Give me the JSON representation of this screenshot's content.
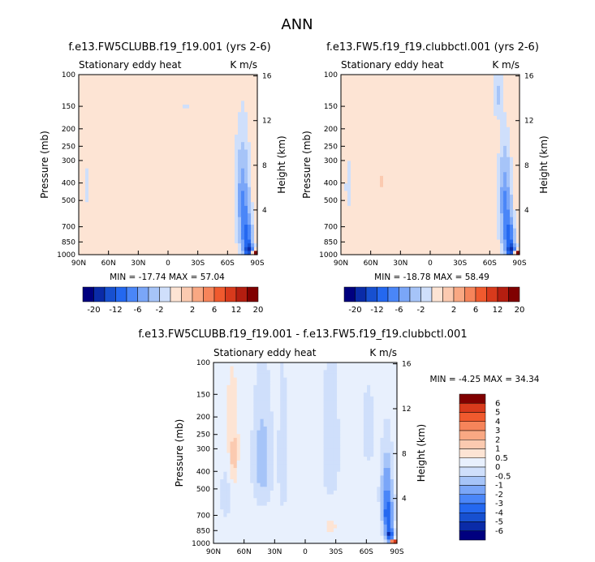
{
  "chart_data": {
    "type": "heatmap",
    "title": "ANN",
    "panels": [
      {
        "id": "p1",
        "title": "f.e13.FW5CLUBB.f19_f19.001 (yrs 2-6)",
        "left_label": "Stationary eddy heat",
        "right_label": "K m/s",
        "xlabel": "",
        "ylabel": "Pressure (mb)",
        "y2label": "Height (km)",
        "x_ticks": [
          "90N",
          "60N",
          "30N",
          "0",
          "30S",
          "60S",
          "90S"
        ],
        "x_values": [
          90,
          60,
          30,
          0,
          -30,
          -60,
          -90
        ],
        "y_ticks": [
          100,
          150,
          200,
          250,
          300,
          400,
          500,
          700,
          850,
          1000
        ],
        "y2_ticks": [
          4,
          8,
          12,
          16
        ],
        "ylim": [
          1000,
          100
        ],
        "stats": "MIN = -17.74   MAX = 57.04",
        "min": -17.74,
        "max": 57.04,
        "background_value": -0.7,
        "features": [
          {
            "lat": 23,
            "p": 140,
            "wlat": 4,
            "wp": 14,
            "v": 1.5
          },
          {
            "lat": -18,
            "p": 150,
            "wlat": 3,
            "wp": 6,
            "v": -1.2
          },
          {
            "lat": 46,
            "p": 400,
            "wlat": 5,
            "wp": 150,
            "v": 1.4
          },
          {
            "lat": 56,
            "p": 400,
            "wlat": 10,
            "wp": 330,
            "v": 0.6
          },
          {
            "lat": 82,
            "p": 420,
            "wlat": 3,
            "wp": 90,
            "v": -0.8
          },
          {
            "lat": -74,
            "p": 380,
            "wlat": 6,
            "wp": 140,
            "v": -2
          },
          {
            "lat": -76,
            "p": 620,
            "wlat": 5,
            "wp": 260,
            "v": -6
          },
          {
            "lat": -80,
            "p": 820,
            "wlat": 4,
            "wp": 180,
            "v": -9
          },
          {
            "lat": -82,
            "p": 950,
            "wlat": 4,
            "wp": 60,
            "v": -14
          },
          {
            "lat": -88,
            "p": 985,
            "wlat": 2.5,
            "wp": 35,
            "v": 30
          }
        ]
      },
      {
        "id": "p2",
        "title": "f.e13.FW5.f19_f19.clubbctl.001 (yrs 2-6)",
        "left_label": "Stationary eddy heat",
        "right_label": "K m/s",
        "xlabel": "",
        "ylabel": "Pressure (mb)",
        "y2label": "Height (km)",
        "x_ticks": [
          "90N",
          "60N",
          "30N",
          "0",
          "30S",
          "60S",
          "90S"
        ],
        "x_values": [
          90,
          60,
          30,
          0,
          -30,
          -60,
          -90
        ],
        "y_ticks": [
          100,
          150,
          200,
          250,
          300,
          400,
          500,
          700,
          850,
          1000
        ],
        "y2_ticks": [
          4,
          8,
          12,
          16
        ],
        "ylim": [
          1000,
          100
        ],
        "stats": "MIN = -18.78   MAX = 58.49",
        "min": -18.78,
        "max": 58.49,
        "background_value": -0.6,
        "features": [
          {
            "lat": 48,
            "p": 400,
            "wlat": 6,
            "wp": 400,
            "v": 1.5
          },
          {
            "lat": 28,
            "p": 360,
            "wlat": 16,
            "wp": 700,
            "v": 0.9
          },
          {
            "lat": 82,
            "p": 420,
            "wlat": 3,
            "wp": 120,
            "v": -1.2
          },
          {
            "lat": -68,
            "p": 130,
            "wlat": 4,
            "wp": 35,
            "v": -1.8
          },
          {
            "lat": -74,
            "p": 400,
            "wlat": 5,
            "wp": 140,
            "v": -2
          },
          {
            "lat": -76,
            "p": 620,
            "wlat": 5,
            "wp": 260,
            "v": -6
          },
          {
            "lat": -80,
            "p": 820,
            "wlat": 4,
            "wp": 180,
            "v": -9
          },
          {
            "lat": -82,
            "p": 950,
            "wlat": 4,
            "wp": 60,
            "v": -14
          },
          {
            "lat": -88,
            "p": 985,
            "wlat": 2.5,
            "wp": 35,
            "v": 30
          }
        ]
      },
      {
        "id": "p3",
        "title": "f.e13.FW5CLUBB.f19_f19.001 - f.e13.FW5.f19_f19.clubbctl.001",
        "left_label": "Stationary eddy heat",
        "right_label": "K m/s",
        "xlabel": "",
        "ylabel": "Pressure (mb)",
        "y2label": "Height (km)",
        "x_ticks": [
          "90N",
          "60N",
          "30N",
          "0",
          "30S",
          "60S",
          "90S"
        ],
        "x_values": [
          90,
          60,
          30,
          0,
          -30,
          -60,
          -90
        ],
        "y_ticks": [
          100,
          150,
          200,
          250,
          300,
          400,
          500,
          700,
          850,
          1000
        ],
        "y2_ticks": [
          4,
          8,
          12,
          16
        ],
        "ylim": [
          1000,
          100
        ],
        "stats": "MIN =  -4.25   MAX =  34.34",
        "min": -4.25,
        "max": 34.34,
        "background_value": 0.15,
        "features": [
          {
            "lat": 70,
            "p": 350,
            "wlat": 4,
            "wp": 120,
            "v": 0.9
          },
          {
            "lat": 72,
            "p": 200,
            "wlat": 8,
            "wp": 150,
            "v": 0.5
          },
          {
            "lat": 42,
            "p": 350,
            "wlat": 8,
            "wp": 200,
            "v": -1.1
          },
          {
            "lat": 22,
            "p": 350,
            "wlat": 4,
            "wp": 250,
            "v": -0.5
          },
          {
            "lat": 78,
            "p": 550,
            "wlat": 4,
            "wp": 150,
            "v": -0.6
          },
          {
            "lat": -25,
            "p": 800,
            "wlat": 6,
            "wp": 80,
            "v": 0.7
          },
          {
            "lat": -25,
            "p": 300,
            "wlat": 10,
            "wp": 300,
            "v": -0.3
          },
          {
            "lat": -62,
            "p": 240,
            "wlat": 5,
            "wp": 90,
            "v": -0.6
          },
          {
            "lat": -80,
            "p": 520,
            "wlat": 5,
            "wp": 200,
            "v": -2
          },
          {
            "lat": -81,
            "p": 720,
            "wlat": 4,
            "wp": 150,
            "v": -3.5
          },
          {
            "lat": -83,
            "p": 900,
            "wlat": 3,
            "wp": 70,
            "v": -5
          },
          {
            "lat": -87,
            "p": 985,
            "wlat": 2.5,
            "wp": 30,
            "v": 8
          }
        ]
      }
    ],
    "colorbar_fields": {
      "levels": [
        "-20",
        "-12",
        "-6",
        "-2",
        "2",
        "6",
        "12",
        "20"
      ],
      "level_values": [
        -20,
        -16,
        -12,
        -9,
        -6,
        -4,
        -2,
        -1,
        1,
        2,
        4,
        6,
        9,
        12,
        16,
        20
      ],
      "colors": [
        "#00007f",
        "#0a2ba8",
        "#1750d0",
        "#2468f0",
        "#4a86f8",
        "#7aa6f8",
        "#a6c4f8",
        "#cfdffb",
        "#fde4d4",
        "#fbcab0",
        "#f9a883",
        "#f6845a",
        "#f05a2e",
        "#d83a1c",
        "#b41e10",
        "#800000"
      ]
    },
    "colorbar_diff": {
      "levels": [
        "6",
        "5",
        "4",
        "3",
        "2",
        "1",
        "0.5",
        "0",
        "-0.5",
        "-1",
        "-2",
        "-3",
        "-4",
        "-5",
        "-6"
      ],
      "level_values": [
        -6,
        -5,
        -4,
        -3,
        -2,
        -1,
        -0.5,
        0,
        0.5,
        1,
        2,
        3,
        4,
        5,
        6
      ],
      "colors": [
        "#00007f",
        "#0a2ba8",
        "#1750d0",
        "#2468f0",
        "#4a86f8",
        "#7aa6f8",
        "#a6c4f8",
        "#cfdffb",
        "#e8f0fd",
        "#fde4d4",
        "#fbcab0",
        "#f9a883",
        "#f6845a",
        "#f05a2e",
        "#d83a1c",
        "#800000"
      ]
    }
  }
}
